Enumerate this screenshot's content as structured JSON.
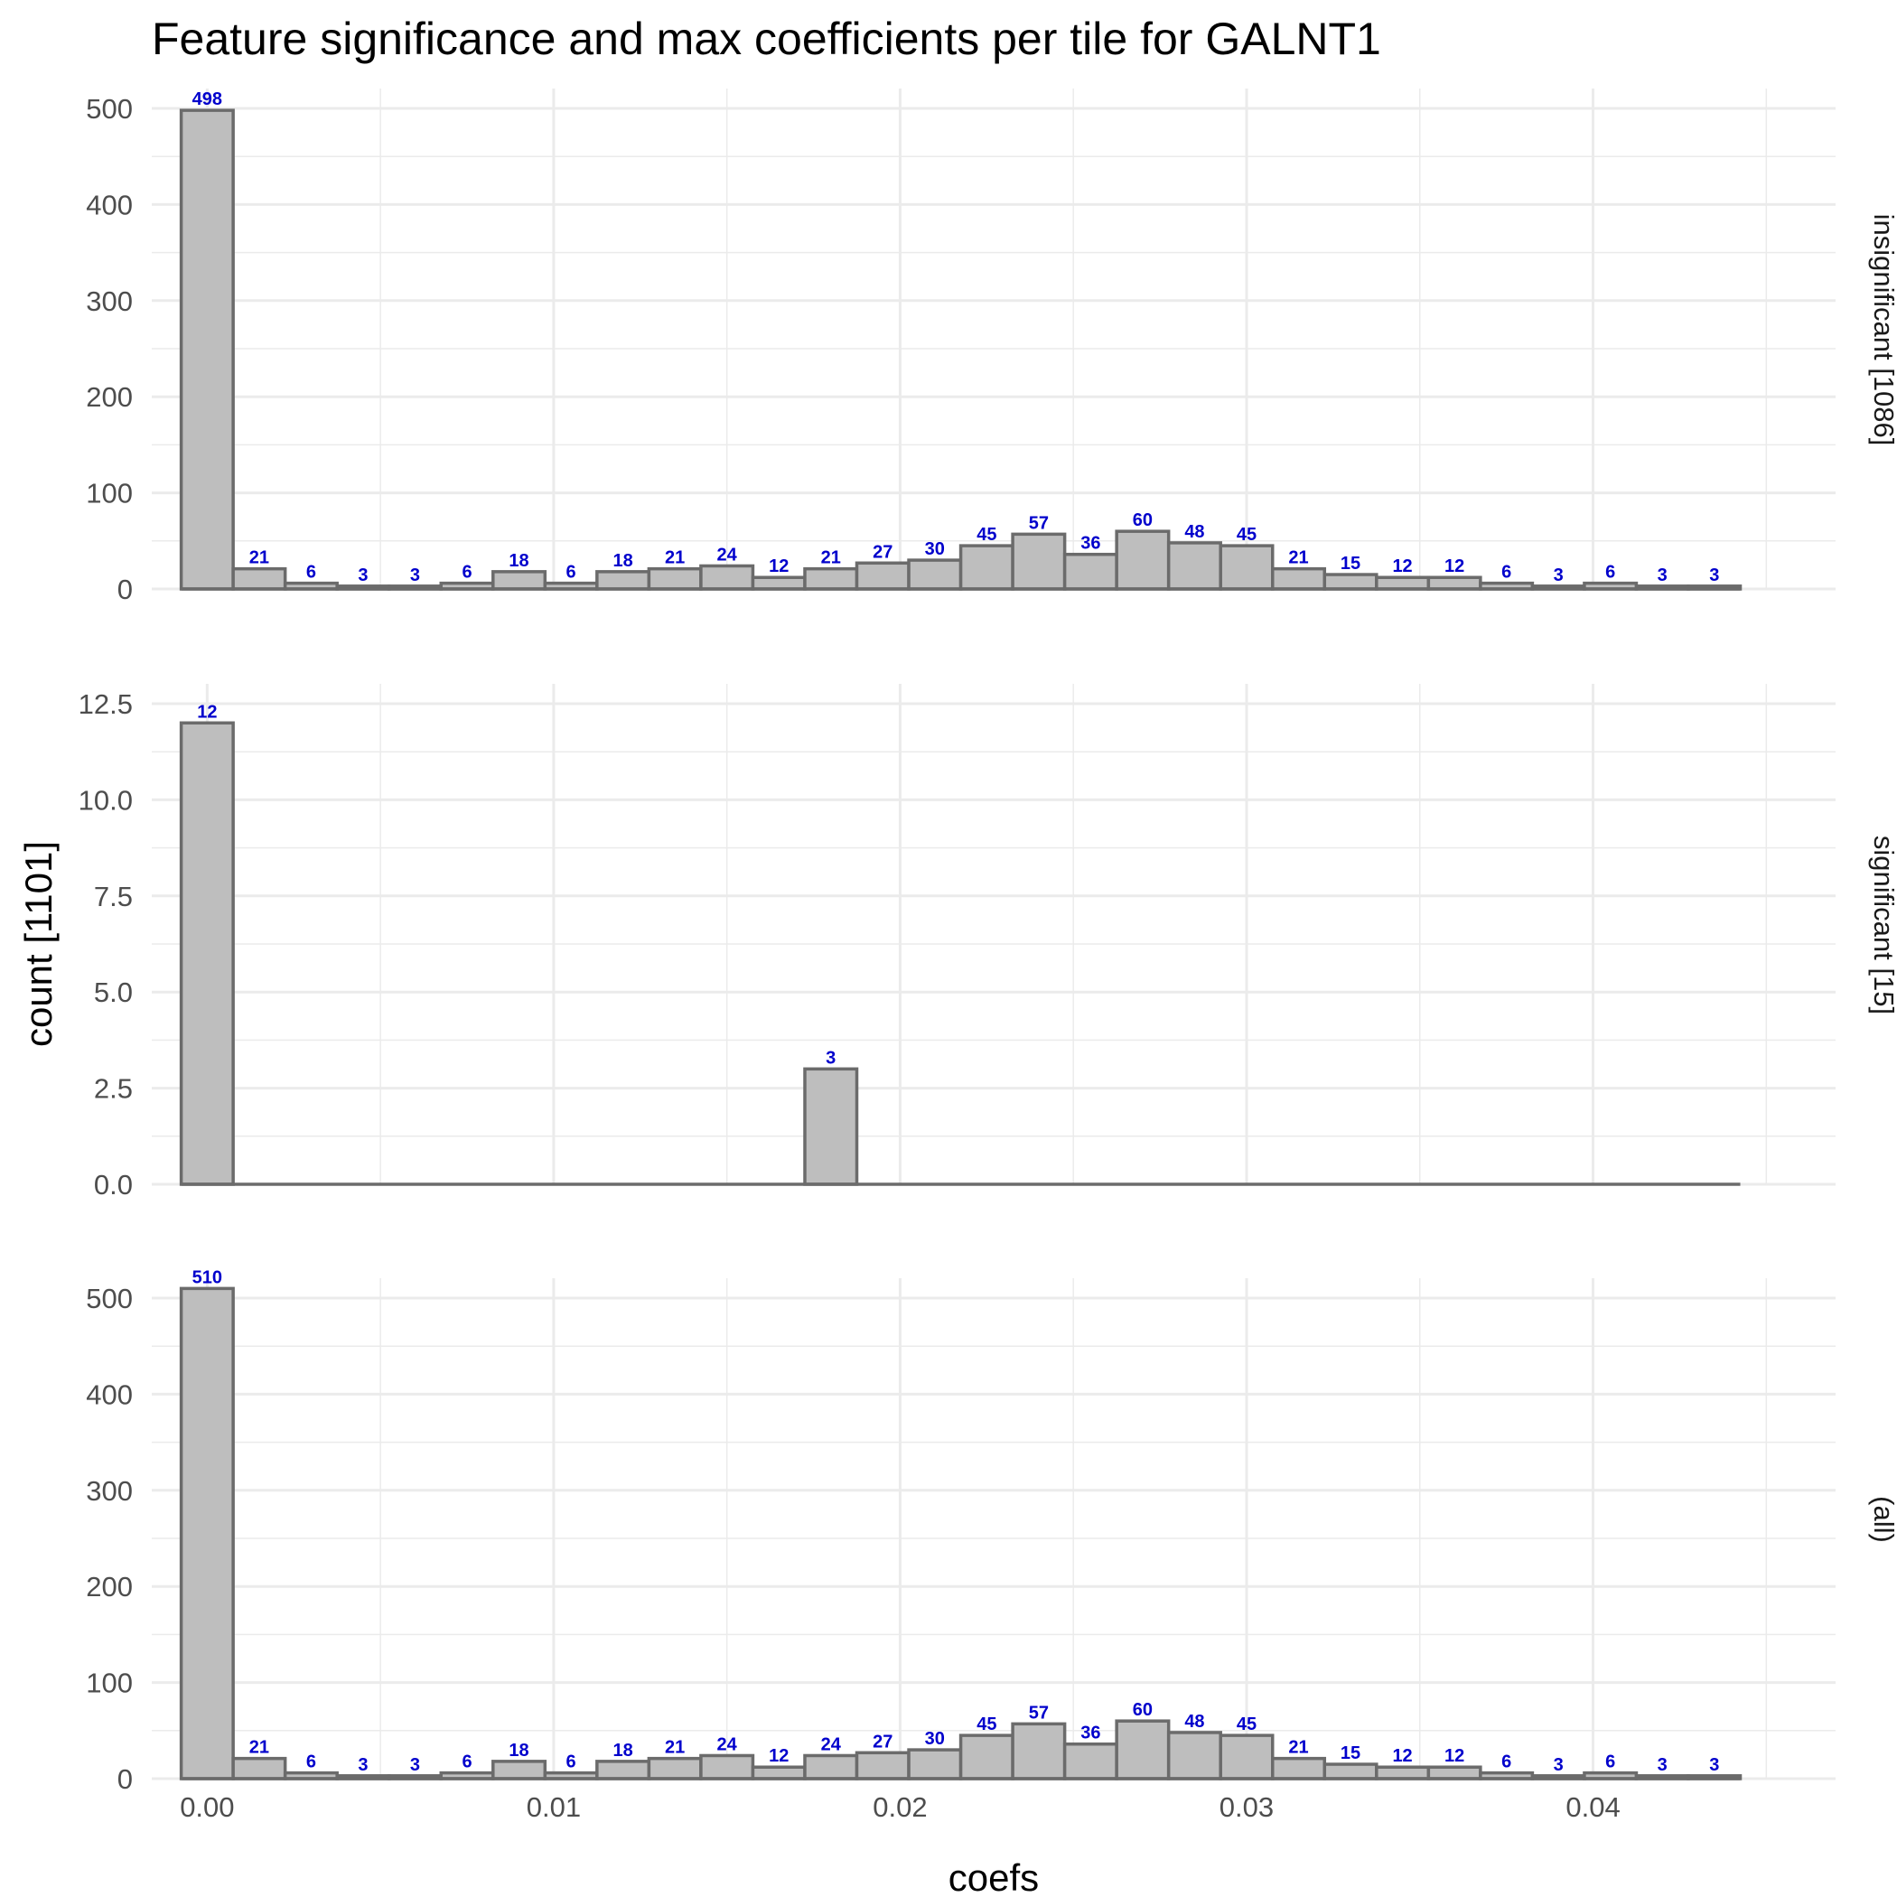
{
  "chart_data": {
    "type": "bar",
    "title": "Feature significance and max coefficients per tile for GALNT1",
    "xlabel": "coefs",
    "ylabel": "count [1101]",
    "x_ticks": [
      "0.00",
      "0.01",
      "0.02",
      "0.03",
      "0.04"
    ],
    "x_tick_values": [
      0,
      0.01,
      0.02,
      0.03,
      0.04
    ],
    "xlim": [
      -0.0016,
      0.047
    ],
    "bins": {
      "start": -0.00075,
      "width": 0.0015,
      "count": 30
    },
    "grid": true,
    "facets": [
      {
        "strip": "insignificant [1086]",
        "ylim": [
          0,
          500
        ],
        "y_ticks": [
          "0",
          "100",
          "200",
          "300",
          "400",
          "500"
        ],
        "y_tick_values": [
          0,
          100,
          200,
          300,
          400,
          500
        ],
        "values": [
          498,
          21,
          6,
          3,
          3,
          6,
          18,
          6,
          18,
          21,
          24,
          12,
          21,
          27,
          30,
          45,
          57,
          36,
          60,
          48,
          45,
          21,
          15,
          12,
          12,
          6,
          3,
          6,
          3,
          3
        ]
      },
      {
        "strip": "significant [15]",
        "ylim": [
          0,
          12.5
        ],
        "y_ticks": [
          "0.0",
          "2.5",
          "5.0",
          "7.5",
          "10.0",
          "12.5"
        ],
        "y_tick_values": [
          0,
          2.5,
          5,
          7.5,
          10,
          12.5
        ],
        "values": [
          12,
          0,
          0,
          0,
          0,
          0,
          0,
          0,
          0,
          0,
          0,
          0,
          3,
          0,
          0,
          0,
          0,
          0,
          0,
          0,
          0,
          0,
          0,
          0,
          0,
          0,
          0,
          0,
          0,
          0
        ]
      },
      {
        "strip": "(all)",
        "ylim": [
          0,
          500
        ],
        "y_ticks": [
          "0",
          "100",
          "200",
          "300",
          "400",
          "500"
        ],
        "y_tick_values": [
          0,
          100,
          200,
          300,
          400,
          500
        ],
        "values": [
          510,
          21,
          6,
          3,
          3,
          6,
          18,
          6,
          18,
          21,
          24,
          12,
          24,
          27,
          30,
          45,
          57,
          36,
          60,
          48,
          45,
          21,
          15,
          12,
          12,
          6,
          3,
          6,
          3,
          3
        ]
      }
    ],
    "colors": {
      "bar_fill": "#bebebe",
      "bar_outline": "#6b6b6b",
      "bar_label": "#0000cc",
      "grid": "#ebebeb"
    }
  }
}
